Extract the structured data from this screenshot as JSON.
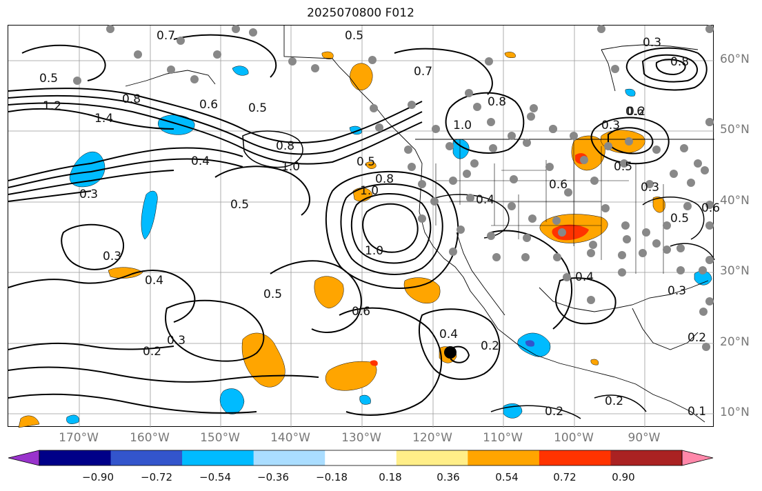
{
  "title": "2025070800 F012",
  "lat_labels": [
    "60°N",
    "50°N",
    "40°N",
    "30°N",
    "20°N",
    "10°N"
  ],
  "lon_labels": [
    "170°W",
    "160°W",
    "150°W",
    "140°W",
    "130°W",
    "120°W",
    "110°W",
    "100°W",
    "90°W"
  ],
  "contour_labels": [
    "0.5",
    "0.7",
    "0.8",
    "0.5",
    "0.7",
    "0.3",
    "0.8",
    "1.2",
    "1.4",
    "0.8",
    "0.6",
    "0.5",
    "0.4",
    "0.8",
    "1.0",
    "0.5",
    "0.8",
    "0.5",
    "1.0",
    "0.6",
    "1.0",
    "0.3",
    "0.3",
    "0.6",
    "0.4",
    "0.5",
    "0.4",
    "0.5",
    "0.2",
    "0.3",
    "0.3",
    "0.6",
    "0.4",
    "0.2",
    "1.0",
    "0.4",
    "0.2",
    "0.2",
    "0.3",
    "0.2",
    "0.5",
    "0.6",
    "0.3",
    "0.2",
    "0.1"
  ],
  "colorbar": {
    "colors": [
      "#9933CC",
      "#000088",
      "#3355CC",
      "#00BBFF",
      "#AADDFF",
      "#FFFFFF",
      "#FFEE88",
      "#FFA500",
      "#FF3300",
      "#AA2222",
      "#FF88AA"
    ],
    "tick_labels": [
      "−0.90",
      "−0.72",
      "−0.54",
      "−0.36",
      "−0.18",
      "0.18",
      "0.36",
      "0.54",
      "0.72",
      "0.90"
    ]
  },
  "colors": {
    "positive_fill": "#FFA500",
    "strong_positive_fill": "#FF3300",
    "negative_fill": "#00BBFF",
    "contour": "#000000",
    "grid": "#999999",
    "station": "#888888"
  }
}
